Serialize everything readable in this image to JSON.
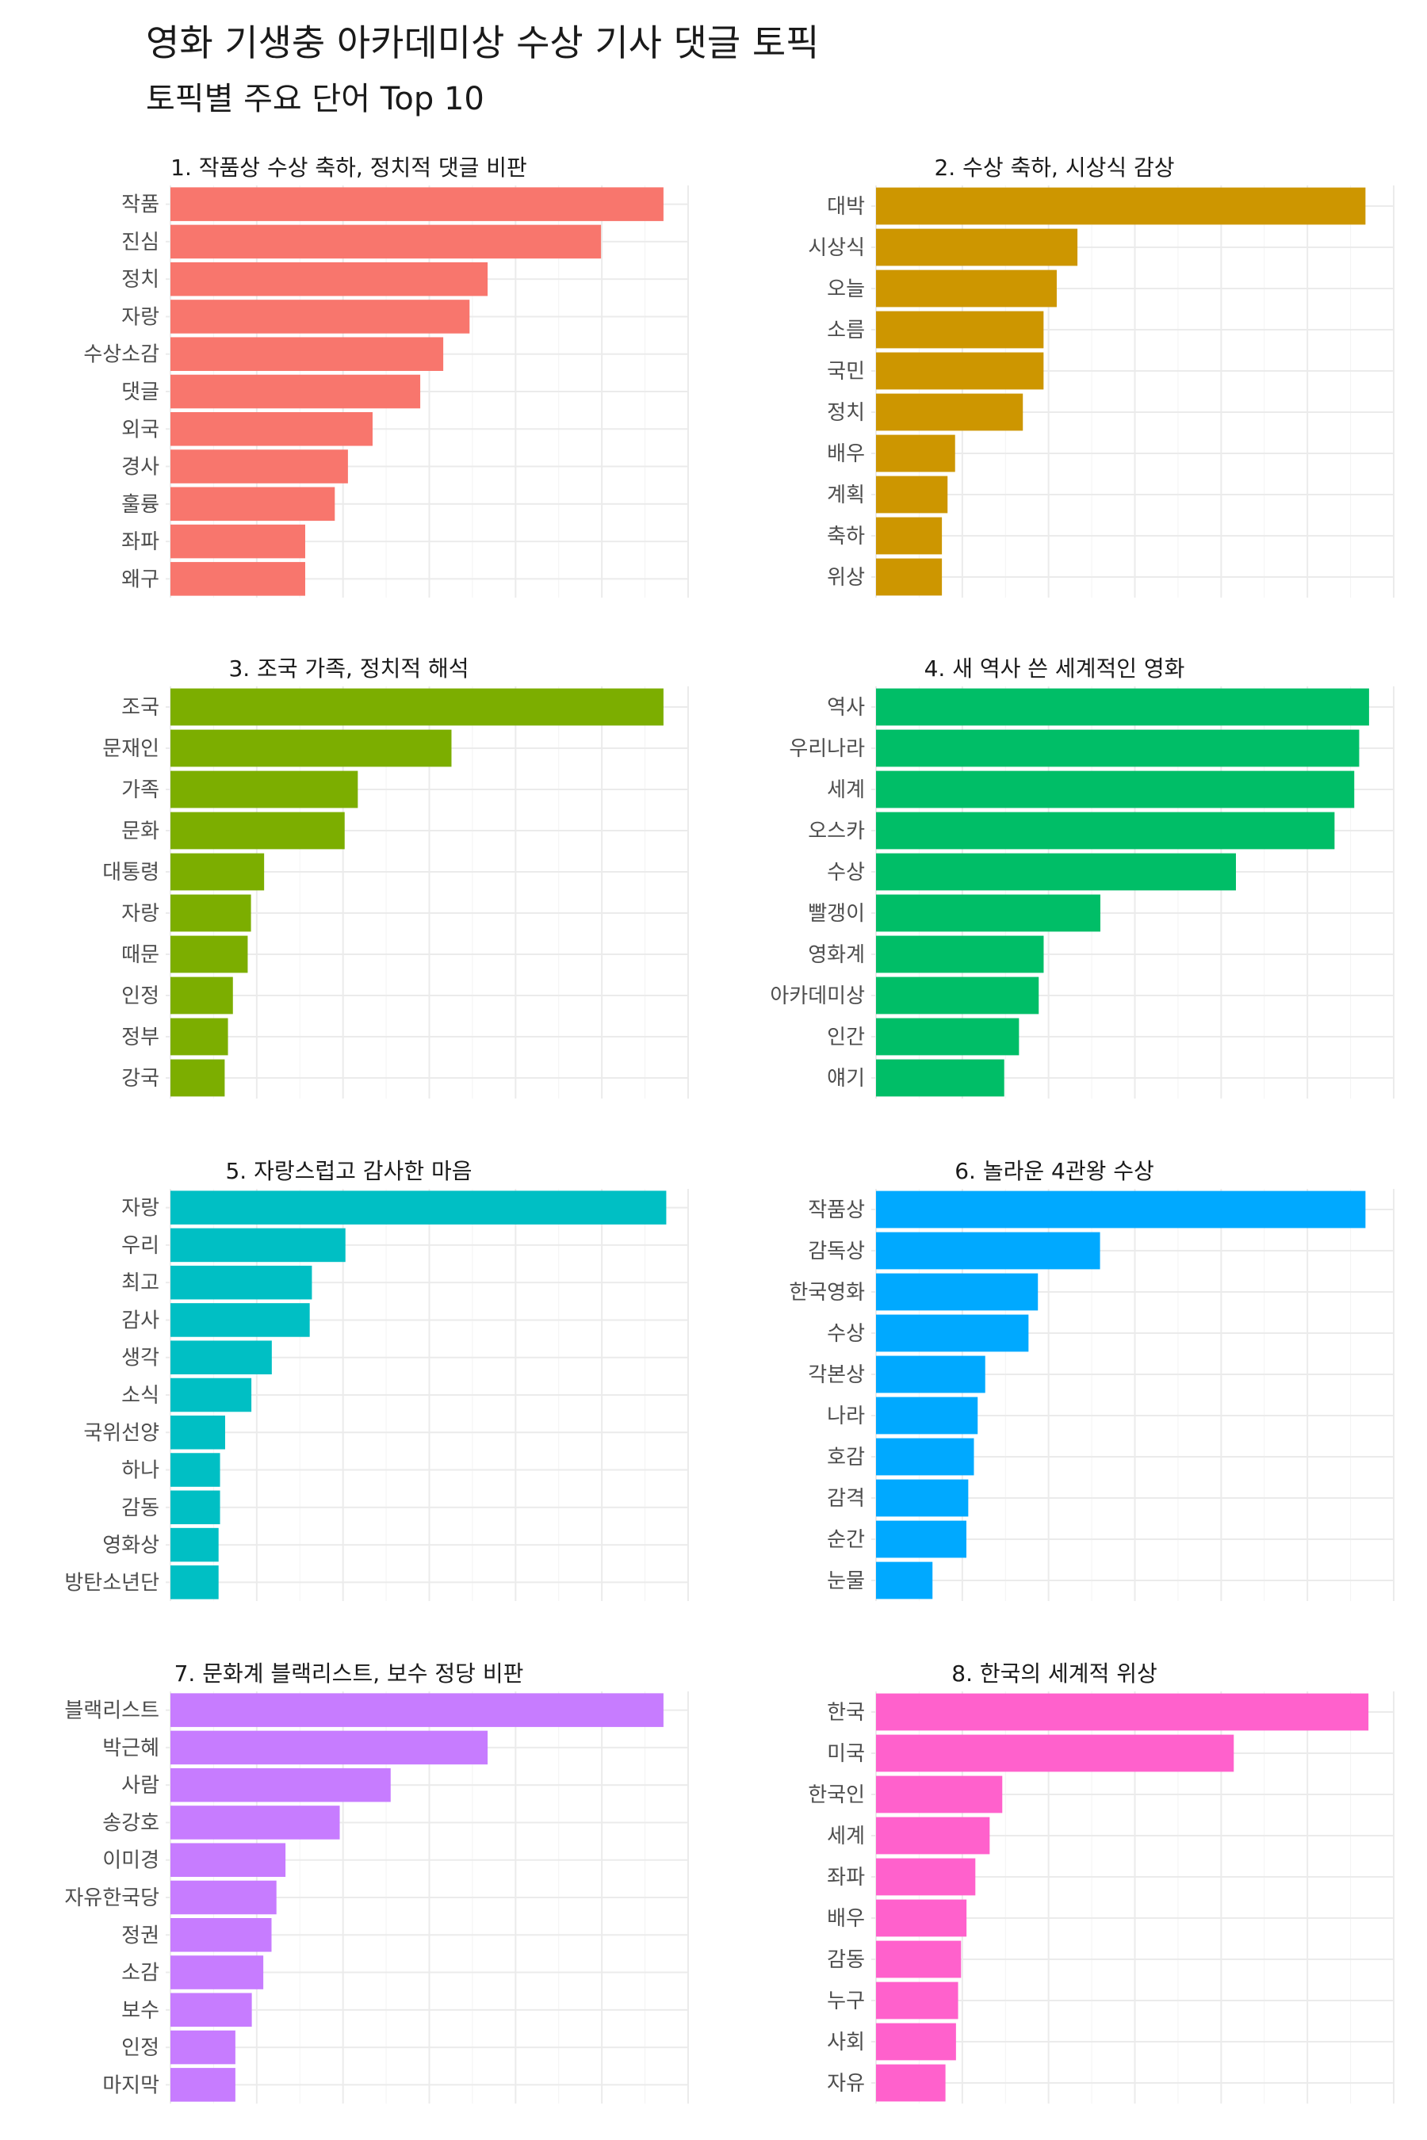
{
  "title": "영화 기생충 아카데미상 수상 기사 댓글 토픽",
  "subtitle": "토픽별 주요 단어 Top 10",
  "chart_data": [
    {
      "type": "bar",
      "title": "1. 작품상 수상 축하, 정치적 댓글 비판",
      "color": "#F8766D",
      "categories": [
        "작품",
        "진심",
        "정치",
        "자랑",
        "수상소감",
        "댓글",
        "외국",
        "경사",
        "훌륭",
        "좌파",
        "왜구"
      ],
      "values": [
        60,
        52.4,
        38.6,
        36.4,
        33.2,
        30.4,
        24.6,
        21.6,
        20.0,
        16.4,
        16.4
      ],
      "xlim": [
        0,
        63
      ],
      "grid": true
    },
    {
      "type": "bar",
      "title": "2. 수상 축하, 시상식 감상",
      "color": "#CD9600",
      "categories": [
        "대박",
        "시상식",
        "오늘",
        "소름",
        "국민",
        "정치",
        "배우",
        "계획",
        "축하",
        "위상"
      ],
      "values": [
        52,
        21.4,
        19.2,
        17.8,
        17.8,
        15.6,
        8.4,
        7.6,
        7.0,
        7.0
      ],
      "xlim": [
        0,
        55
      ],
      "grid": true
    },
    {
      "type": "bar",
      "title": "3. 조국 가족, 정치적 해석",
      "color": "#7CAE00",
      "categories": [
        "조국",
        "문재인",
        "가족",
        "문화",
        "대통령",
        "자랑",
        "때문",
        "인정",
        "정부",
        "강국"
      ],
      "values": [
        30,
        17.1,
        11.4,
        10.6,
        5.7,
        4.9,
        4.7,
        3.8,
        3.5,
        3.3
      ],
      "xlim": [
        0,
        31.5
      ],
      "grid": true
    },
    {
      "type": "bar",
      "title": "4. 새 역사 쓴 세계적인 영화",
      "color": "#00BE67",
      "categories": [
        "역사",
        "우리나라",
        "세계",
        "오스카",
        "수상",
        "빨갱이",
        "영화계",
        "아카데미상",
        "인간",
        "얘기"
      ],
      "values": [
        100,
        98,
        97,
        93,
        73,
        45.5,
        34,
        33,
        29,
        26
      ],
      "xlim": [
        0,
        105
      ],
      "grid": true
    },
    {
      "type": "bar",
      "title": "5. 자랑스럽고 감사한 마음",
      "color": "#00BFC4",
      "categories": [
        "자랑",
        "우리",
        "최고",
        "감사",
        "생각",
        "소식",
        "국위선양",
        "하나",
        "감동",
        "영화상",
        "방탄소년단"
      ],
      "values": [
        68,
        24,
        19.4,
        19.1,
        13.9,
        11.1,
        7.5,
        6.8,
        6.8,
        6.6,
        6.6
      ],
      "xlim": [
        0,
        71
      ],
      "grid": true
    },
    {
      "type": "bar",
      "title": "6. 놀라운 4관왕 수상",
      "color": "#00A9FF",
      "categories": [
        "작품상",
        "감독상",
        "한국영화",
        "수상",
        "각본상",
        "나라",
        "호감",
        "감격",
        "순간",
        "눈물"
      ],
      "values": [
        52,
        23.8,
        17.2,
        16.2,
        11.6,
        10.8,
        10.4,
        9.8,
        9.6,
        6.0
      ],
      "xlim": [
        0,
        55
      ],
      "grid": true
    },
    {
      "type": "bar",
      "title": "7. 문화계 블랙리스트, 보수 정당 비판",
      "color": "#C77CFF",
      "categories": [
        "블랙리스트",
        "박근혜",
        "사람",
        "송강호",
        "이미경",
        "자유한국당",
        "정권",
        "소감",
        "보수",
        "인정",
        "마지막"
      ],
      "values": [
        60,
        38.6,
        26.8,
        20.6,
        14.0,
        12.9,
        12.3,
        11.3,
        9.9,
        7.9,
        7.9
      ],
      "xlim": [
        0,
        63
      ],
      "grid": true
    },
    {
      "type": "bar",
      "title": "8. 한국의 세계적 위상",
      "color": "#FF61CC",
      "categories": [
        "한국",
        "미국",
        "한국인",
        "세계",
        "좌파",
        "배우",
        "감동",
        "누구",
        "사회",
        "자유"
      ],
      "values": [
        117,
        85,
        30,
        27,
        23.6,
        21.5,
        20.2,
        19.5,
        19.0,
        16.5
      ],
      "xlim": [
        0,
        123
      ],
      "grid": true
    }
  ]
}
